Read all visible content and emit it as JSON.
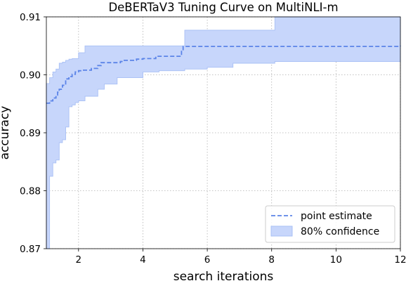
{
  "chart_data": {
    "type": "line",
    "title": "DeBERTaV3 Tuning Curve on MultiNLI-m",
    "xlabel": "search iterations",
    "ylabel": "accuracy",
    "xlim": [
      1,
      12
    ],
    "ylim": [
      0.87,
      0.91
    ],
    "xticks": [
      2,
      4,
      6,
      8,
      10,
      12
    ],
    "xtick_labels": [
      "2",
      "4",
      "6",
      "8",
      "10",
      "12"
    ],
    "yticks": [
      0.87,
      0.88,
      0.89,
      0.9,
      0.91
    ],
    "ytick_labels": [
      "0.87",
      "0.88",
      "0.89",
      "0.90",
      "0.91"
    ],
    "grid": true,
    "legend_position": "lower-right",
    "colors": {
      "line": "#5b84e8",
      "band_fill": "#c7d6fb",
      "band_edge": "#a9c0f5",
      "grid": "#b0b0b0"
    },
    "series": [
      {
        "name": "point estimate",
        "style": "dashed",
        "x": [
          1,
          1.1,
          1.2,
          1.3,
          1.35,
          1.4,
          1.5,
          1.6,
          1.7,
          1.8,
          1.9,
          2.0,
          2.1,
          2.4,
          2.6,
          2.7,
          3.3,
          3.4,
          3.8,
          4.0,
          4.4,
          5.2,
          5.25,
          10.7,
          12
        ],
        "y": [
          0.8951,
          0.8955,
          0.896,
          0.8965,
          0.897,
          0.8975,
          0.8982,
          0.8993,
          0.8997,
          0.9001,
          0.9005,
          0.9007,
          0.9008,
          0.9011,
          0.9016,
          0.9021,
          0.9023,
          0.9025,
          0.9027,
          0.9028,
          0.9032,
          0.9042,
          0.9049,
          0.9049,
          0.905
        ]
      },
      {
        "name": "80% confidence",
        "style": "band",
        "x": [
          1,
          1.1,
          1.2,
          1.3,
          1.4,
          1.5,
          1.6,
          1.7,
          1.8,
          1.9,
          2.0,
          2.2,
          2.6,
          2.8,
          3.2,
          4.0,
          4.5,
          5.3,
          5.5,
          6.0,
          6.8,
          8.1,
          12
        ],
        "lower": [
          0.868,
          0.8825,
          0.8848,
          0.8853,
          0.8883,
          0.8888,
          0.891,
          0.8945,
          0.8948,
          0.8952,
          0.8955,
          0.8963,
          0.8975,
          0.8984,
          0.8995,
          0.9005,
          0.9007,
          0.901,
          0.901,
          0.9013,
          0.902,
          0.9023,
          0.9023
        ],
        "upper": [
          0.8985,
          0.8995,
          0.9005,
          0.901,
          0.902,
          0.9022,
          0.9025,
          0.9027,
          0.9028,
          0.9028,
          0.9038,
          0.905,
          0.905,
          0.905,
          0.905,
          0.905,
          0.905,
          0.9077,
          0.9077,
          0.9077,
          0.9077,
          0.9105,
          0.9105
        ]
      }
    ]
  }
}
